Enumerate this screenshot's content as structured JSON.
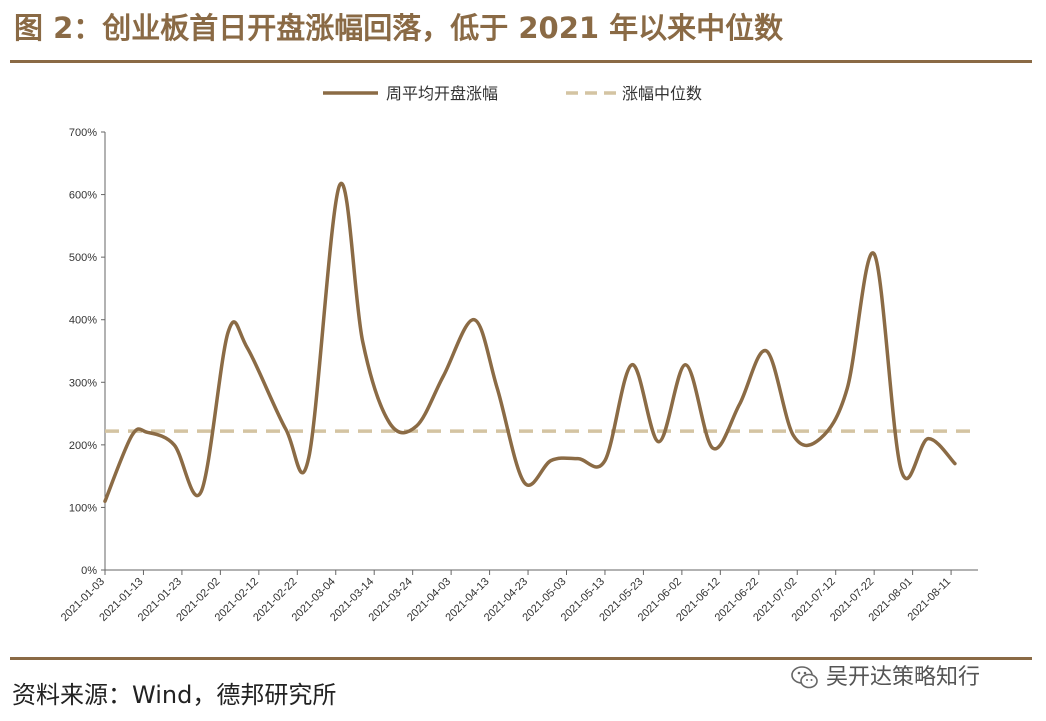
{
  "header": {
    "title": "图 2：创业板首日开盘涨幅回落，低于 2021 年以来中位数"
  },
  "footer": {
    "source": "资料来源：Wind，德邦研究所",
    "watermark": "吴开达策略知行"
  },
  "colors": {
    "accent": "#8a6a45",
    "series": "#8b6b45",
    "median": "#d4c4a2"
  },
  "chart_data": {
    "type": "line",
    "ylim": [
      0,
      700
    ],
    "yticks": [
      0,
      100,
      200,
      300,
      400,
      500,
      600,
      700
    ],
    "ytick_labels": [
      "0%",
      "100%",
      "200%",
      "300%",
      "400%",
      "500%",
      "600%",
      "700%"
    ],
    "xlim": [
      "2021-01-03",
      "2021-08-18"
    ],
    "xtick_labels": [
      "2021-01-03",
      "2021-01-13",
      "2021-01-23",
      "2021-02-02",
      "2021-02-12",
      "2021-02-22",
      "2021-03-04",
      "2021-03-14",
      "2021-03-24",
      "2021-04-03",
      "2021-04-13",
      "2021-04-23",
      "2021-05-03",
      "2021-05-13",
      "2021-05-23",
      "2021-06-02",
      "2021-06-12",
      "2021-06-22",
      "2021-07-02",
      "2021-07-12",
      "2021-07-22",
      "2021-08-01",
      "2021-08-11"
    ],
    "legend": {
      "position": "top-center"
    },
    "series": [
      {
        "name": "周平均开盘涨幅",
        "style": "solid",
        "points": [
          {
            "x": "2021-01-03",
            "y": 110
          },
          {
            "x": "2021-01-10",
            "y": 215
          },
          {
            "x": "2021-01-14",
            "y": 220
          },
          {
            "x": "2021-01-21",
            "y": 200
          },
          {
            "x": "2021-01-28",
            "y": 125
          },
          {
            "x": "2021-02-04",
            "y": 380
          },
          {
            "x": "2021-02-09",
            "y": 355
          },
          {
            "x": "2021-02-19",
            "y": 225
          },
          {
            "x": "2021-02-25",
            "y": 180
          },
          {
            "x": "2021-03-05",
            "y": 615
          },
          {
            "x": "2021-03-11",
            "y": 365
          },
          {
            "x": "2021-03-18",
            "y": 235
          },
          {
            "x": "2021-03-25",
            "y": 230
          },
          {
            "x": "2021-04-01",
            "y": 310
          },
          {
            "x": "2021-04-09",
            "y": 400
          },
          {
            "x": "2021-04-15",
            "y": 290
          },
          {
            "x": "2021-04-22",
            "y": 140
          },
          {
            "x": "2021-04-29",
            "y": 175
          },
          {
            "x": "2021-05-06",
            "y": 178
          },
          {
            "x": "2021-05-13",
            "y": 175
          },
          {
            "x": "2021-05-20",
            "y": 328
          },
          {
            "x": "2021-05-27",
            "y": 205
          },
          {
            "x": "2021-06-03",
            "y": 328
          },
          {
            "x": "2021-06-10",
            "y": 195
          },
          {
            "x": "2021-06-17",
            "y": 265
          },
          {
            "x": "2021-06-24",
            "y": 350
          },
          {
            "x": "2021-07-01",
            "y": 215
          },
          {
            "x": "2021-07-08",
            "y": 210
          },
          {
            "x": "2021-07-15",
            "y": 290
          },
          {
            "x": "2021-07-22",
            "y": 505
          },
          {
            "x": "2021-07-29",
            "y": 160
          },
          {
            "x": "2021-08-05",
            "y": 210
          },
          {
            "x": "2021-08-12",
            "y": 170
          }
        ]
      },
      {
        "name": "涨幅中位数",
        "style": "dashed",
        "points": [
          {
            "x": "2021-01-03",
            "y": 222
          },
          {
            "x": "2021-08-18",
            "y": 222
          }
        ]
      }
    ]
  }
}
